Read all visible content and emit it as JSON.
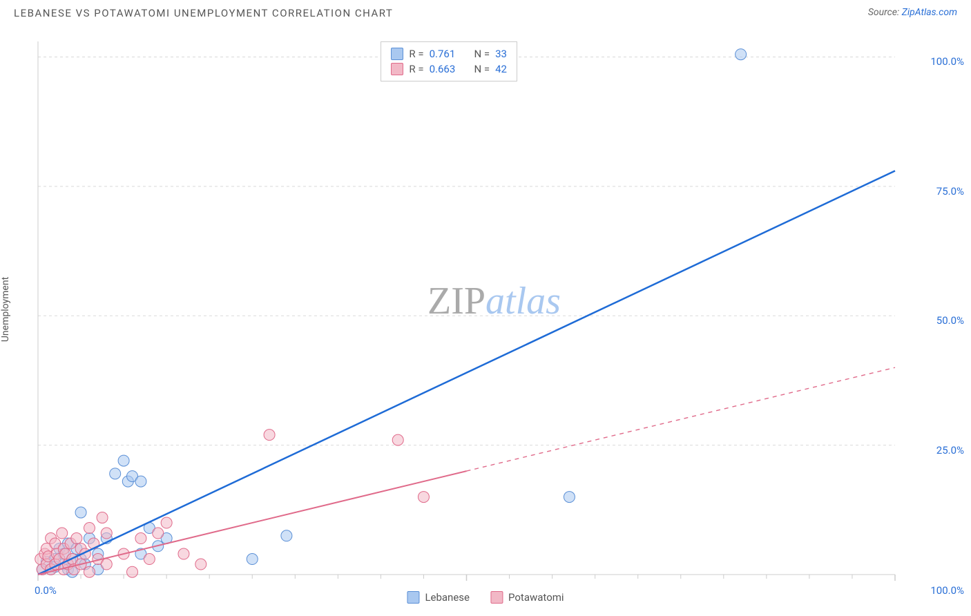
{
  "header": {
    "title": "LEBANESE VS POTAWATOMI UNEMPLOYMENT CORRELATION CHART",
    "source_prefix": "Source: ",
    "source_link": "ZipAtlas.com"
  },
  "watermark": {
    "zip": "ZIP",
    "atlas": "atlas"
  },
  "chart": {
    "type": "scatter",
    "background_color": "#ffffff",
    "grid_color": "#d9d9d9",
    "grid_dash": "4,4",
    "axis_color": "#cccccc",
    "y_axis_label": "Unemployment",
    "xlim": [
      0,
      100
    ],
    "ylim": [
      0,
      103
    ],
    "x_ticks_major": [
      0,
      50,
      100
    ],
    "x_ticks_minor": [
      5,
      10,
      15,
      20,
      25,
      30,
      35,
      40,
      45,
      55,
      60,
      65,
      70,
      75,
      80,
      85,
      90,
      95
    ],
    "x_tick_labels": {
      "0": "0.0%",
      "100": "100.0%"
    },
    "y_ticks": [
      25,
      50,
      75,
      100
    ],
    "y_tick_labels": {
      "25": "25.0%",
      "50": "50.0%",
      "75": "75.0%",
      "100": "100.0%"
    },
    "point_radius": 8,
    "point_opacity": 0.55,
    "series": [
      {
        "name": "Lebanese",
        "color_fill": "#a9c8f0",
        "color_stroke": "#5a8fd6",
        "line_color": "#1e6bd6",
        "line_width": 2.5,
        "line_solid_to_x": 100,
        "trend": {
          "x1": 0,
          "y1": 0,
          "x2": 100,
          "y2": 78
        },
        "stats": {
          "R_label": "R =",
          "R": "0.761",
          "N_label": "N =",
          "N": "33"
        },
        "points": [
          [
            0.5,
            1
          ],
          [
            1,
            2.5
          ],
          [
            1.5,
            1
          ],
          [
            2,
            3
          ],
          [
            2,
            1.5
          ],
          [
            2.5,
            5
          ],
          [
            3,
            2
          ],
          [
            3,
            4
          ],
          [
            3.5,
            1
          ],
          [
            3.5,
            6
          ],
          [
            4,
            3
          ],
          [
            4,
            0.5
          ],
          [
            4.5,
            5
          ],
          [
            5,
            3
          ],
          [
            5,
            12
          ],
          [
            5.5,
            2
          ],
          [
            6,
            7
          ],
          [
            7,
            4
          ],
          [
            7,
            1
          ],
          [
            8,
            7
          ],
          [
            9,
            19.5
          ],
          [
            10,
            22
          ],
          [
            10.5,
            18
          ],
          [
            11,
            19
          ],
          [
            12,
            18
          ],
          [
            12,
            4
          ],
          [
            13,
            9
          ],
          [
            14,
            5.5
          ],
          [
            15,
            7
          ],
          [
            25,
            3
          ],
          [
            29,
            7.5
          ],
          [
            62,
            15
          ],
          [
            82,
            100.5
          ]
        ]
      },
      {
        "name": "Potawatomi",
        "color_fill": "#f2b8c6",
        "color_stroke": "#e06a8a",
        "line_color": "#e06a8a",
        "line_width": 2,
        "line_solid_to_x": 50,
        "trend": {
          "x1": 0,
          "y1": 0,
          "x2": 100,
          "y2": 40
        },
        "stats": {
          "R_label": "R =",
          "R": "0.663",
          "N_label": "N =",
          "N": "42"
        },
        "points": [
          [
            0.3,
            3
          ],
          [
            0.5,
            1
          ],
          [
            0.8,
            4
          ],
          [
            1,
            2
          ],
          [
            1,
            5
          ],
          [
            1.2,
            3.5
          ],
          [
            1.5,
            1
          ],
          [
            1.5,
            7
          ],
          [
            2,
            2
          ],
          [
            2,
            6
          ],
          [
            2.2,
            4
          ],
          [
            2.5,
            3
          ],
          [
            2.8,
            8
          ],
          [
            3,
            1
          ],
          [
            3,
            5
          ],
          [
            3.2,
            4
          ],
          [
            3.5,
            2
          ],
          [
            3.8,
            6
          ],
          [
            4,
            3
          ],
          [
            4.2,
            1
          ],
          [
            4.5,
            7
          ],
          [
            5,
            2
          ],
          [
            5,
            5
          ],
          [
            5.5,
            4
          ],
          [
            6,
            9
          ],
          [
            6,
            0.5
          ],
          [
            6.5,
            6
          ],
          [
            7,
            3
          ],
          [
            7.5,
            11
          ],
          [
            8,
            2
          ],
          [
            8,
            8
          ],
          [
            10,
            4
          ],
          [
            11,
            0.5
          ],
          [
            12,
            7
          ],
          [
            13,
            3
          ],
          [
            14,
            8
          ],
          [
            15,
            10
          ],
          [
            17,
            4
          ],
          [
            19,
            2
          ],
          [
            27,
            27
          ],
          [
            42,
            26
          ],
          [
            45,
            15
          ]
        ]
      }
    ],
    "bottom_legend": [
      {
        "label": "Lebanese",
        "fill": "#a9c8f0",
        "stroke": "#5a8fd6"
      },
      {
        "label": "Potawatomi",
        "fill": "#f2b8c6",
        "stroke": "#e06a8a"
      }
    ]
  }
}
